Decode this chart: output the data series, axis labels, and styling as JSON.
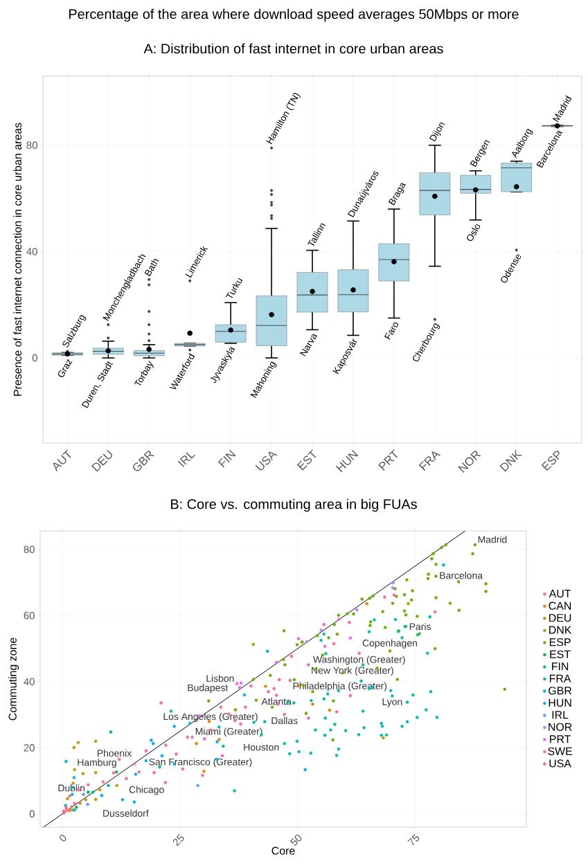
{
  "chart_data": [
    {
      "type": "box",
      "title": "Percentage of the area where download speed averages 50Mbps or more",
      "subtitle": "A: Distribution of fast internet in core urban areas",
      "ylabel": "Presence of fast internet connection in core urban areas",
      "categories": [
        "AUT",
        "DEU",
        "GBR",
        "IRL",
        "FIN",
        "USA",
        "EST",
        "HUN",
        "PRT",
        "FRA",
        "NOR",
        "DNK",
        "ESP"
      ],
      "color": "#add8e6",
      "grid": true,
      "ylim": [
        -32,
        106
      ],
      "yticks": [
        0,
        40,
        80
      ],
      "boxes": [
        {
          "low": 1,
          "q1": 1,
          "median": 1.5,
          "q3": 2,
          "high": 2,
          "mean": 1.5,
          "outliers": [
            2.5
          ]
        },
        {
          "low": 0,
          "q1": 1.3,
          "median": 2.5,
          "q3": 3.7,
          "high": 6.3,
          "mean": 2.7,
          "outliers": [
            7.5,
            12.5
          ]
        },
        {
          "low": 0,
          "q1": 0.8,
          "median": 1.8,
          "q3": 2.8,
          "high": 5,
          "mean": 3.2,
          "outliers": [
            6.5,
            9,
            12.5,
            17.5,
            27.5,
            29.5
          ]
        },
        {
          "low": 4.5,
          "q1": 4.5,
          "median": 5,
          "q3": 5.5,
          "high": 5.5,
          "mean": 9.3,
          "outliers": [
            3,
            29
          ]
        },
        {
          "low": 5.5,
          "q1": 5.9,
          "median": 10,
          "q3": 12.5,
          "high": 20.8,
          "mean": 10.5
        },
        {
          "low": 0,
          "q1": 4.6,
          "median": 12.2,
          "q3": 23.4,
          "high": 48.7,
          "mean": 16.3,
          "outliers": [
            52.5,
            53.5,
            57.5,
            58.5,
            61.5,
            63,
            79
          ]
        },
        {
          "low": 10.6,
          "q1": 17.2,
          "median": 23.7,
          "q3": 32.2,
          "high": 40.5,
          "mean": 25
        },
        {
          "low": 8.5,
          "q1": 17.3,
          "median": 23.8,
          "q3": 33.2,
          "high": 51.5,
          "mean": 25.6
        },
        {
          "low": 15,
          "q1": 28.9,
          "median": 37,
          "q3": 43,
          "high": 56,
          "mean": 36.2
        },
        {
          "low": 34.5,
          "q1": 53.8,
          "median": 63,
          "q3": 69.7,
          "high": 80,
          "mean": 60.8,
          "outliers": [
            14.5
          ]
        },
        {
          "low": 51.9,
          "q1": 61.9,
          "median": 63.4,
          "q3": 68.7,
          "high": 70.4,
          "mean": 63.2
        },
        {
          "low": 62.5,
          "q1": 62.5,
          "median": 71.5,
          "q3": 73.3,
          "high": 74,
          "mean": 64.4,
          "outliers": [
            40.6
          ]
        },
        {
          "low": 87.1,
          "q1": 87.1,
          "median": 87.3,
          "q3": 87.5,
          "high": 87.5,
          "mean": 87.3
        }
      ],
      "annotations": [
        "Salzburg",
        "Graz",
        "Monchengladbach",
        "Duren, Stadt",
        "Bath",
        "Torbay",
        "Limerick",
        "Waterford",
        "Turku",
        "Jyvaskyla",
        "Hamilton (TN)",
        "Mahoning",
        "Tallinn",
        "Narva",
        "Dunaújváros",
        "Kaposvár",
        "Braga",
        "Faro",
        "Dijon",
        "Cherbourg",
        "Bergen",
        "Oslo",
        "Aalborg",
        "Odense",
        "Madrid",
        "Barcelona"
      ]
    },
    {
      "type": "scatter",
      "title": "B: Core vs. commuting area in big FUAs",
      "xlabel": "Core",
      "ylabel": "Commuting zone",
      "xlim": [
        -4.7,
        98.6
      ],
      "ylim": [
        -4,
        85.6
      ],
      "xticks": [
        0,
        25,
        50,
        75
      ],
      "yticks": [
        0,
        20,
        40,
        60,
        80
      ],
      "grid": true,
      "legend": "right",
      "series": [
        {
          "name": "AUT",
          "color": "#F8766D",
          "x": [
            0.3,
            0.5,
            1.0,
            1.5,
            2.0
          ],
          "values": [
            0.3,
            0.6,
            1.2,
            1.0,
            2.2
          ]
        },
        {
          "name": "CAN",
          "color": "#E58700",
          "x": [
            31.2,
            28.5,
            30.1,
            33.3,
            43.2,
            50.1,
            64.7,
            56.8,
            53.2,
            68.2
          ],
          "values": [
            28.0,
            21.3,
            12.9,
            22.5,
            38.6,
            38.7,
            63.6,
            31.4,
            33.2,
            23.0
          ]
        },
        {
          "name": "DEU",
          "color": "#C99800",
          "x": [
            2.6,
            2.5,
            3.4,
            7.1,
            2.3,
            4.4,
            7.1,
            8.0,
            11.6,
            1.1,
            5.0,
            3.8,
            2.1,
            7.1
          ],
          "values": [
            13.4,
            20.1,
            21.6,
            22.0,
            9.3,
            12.2,
            12.5,
            7.3,
            8.6,
            4.6,
            4.3,
            3.2,
            1.2,
            4.4
          ]
        },
        {
          "name": "DNK",
          "color": "#A3A500",
          "x": [
            69.6,
            73.2,
            73.5,
            40.6
          ],
          "values": [
            49.3,
            70.8,
            63.6,
            51.3
          ]
        },
        {
          "name": "ESP",
          "color": "#6BB100",
          "x": [
            47.1,
            49.9,
            50.9,
            47.0,
            47.3,
            44.2,
            40.6,
            41.2,
            44.6,
            36.8,
            31.1,
            49.3,
            51.2,
            51.0,
            54.2,
            56.6,
            58.4,
            57.8,
            58.7,
            60.6,
            61.9,
            63.7,
            65.3,
            66.0,
            68.1,
            68.6,
            65.5,
            65.4,
            70.2,
            70.7,
            71.0,
            72.7,
            72.7,
            73.0,
            74.2,
            74.4,
            75.4,
            75.9,
            71.5,
            72.8,
            77.7,
            77.8,
            79.4,
            79.4,
            79.2,
            78.5,
            79.4,
            78.8,
            80.6,
            81.5,
            87.2,
            87.7,
            84.2,
            82.4,
            84.3,
            90.0,
            90.0,
            94.0,
            71.2,
            66.9,
            59.6,
            53.9,
            53.2,
            57.6,
            51.8,
            57.5,
            55.3
          ],
          "values": [
            55.4,
            51.2,
            52.0,
            46.7,
            45.1,
            41.9,
            40.7,
            34.4,
            32.3,
            31.5,
            34.2,
            40.6,
            38.9,
            52.0,
            53.9,
            53.3,
            54.4,
            57.3,
            60.1,
            60.6,
            60.5,
            65.0,
            65.2,
            65.9,
            61.2,
            56.4,
            58.1,
            57.0,
            63.7,
            68.1,
            65.8,
            66.3,
            61.4,
            60.2,
            64.7,
            67.5,
            59.8,
            54.5,
            55.4,
            56.7,
            71.2,
            72.5,
            71.9,
            65.4,
            50.0,
            77.2,
            75.5,
            78.7,
            80.6,
            81.4,
            78.7,
            81.4,
            70.2,
            63.7,
            61.6,
            69.6,
            67.3,
            37.7,
            40.7,
            44.1,
            42.7,
            43.9,
            37.0,
            34.2,
            30.4,
            22.4,
            48.0
          ]
        },
        {
          "name": "EST",
          "color": "#00BA38",
          "x": [
            11.5,
            5.5,
            3.0
          ],
          "values": [
            12.7,
            6.6,
            2.0
          ]
        },
        {
          "name": "FIN",
          "color": "#00BF7D",
          "x": [
            20.7,
            9.8,
            6.5,
            10.3
          ],
          "values": [
            14.2,
            8.6,
            6.6,
            24.8
          ]
        },
        {
          "name": "FRA",
          "color": "#00C0AF",
          "x": [
            23.1,
            36.6,
            34.2,
            40.7,
            42.3,
            43.0,
            43.6,
            47.2,
            48.3,
            49.9,
            50.3,
            47.9,
            49.2,
            52.8,
            53.8,
            55.8,
            57.0,
            57.9,
            58.7,
            58.3,
            60.2,
            63.0,
            64.1,
            63.9,
            55.9,
            55.6,
            56.4,
            58.7,
            52.9,
            63.5,
            65.2,
            65.9,
            63.9,
            65.2,
            66.3,
            70.8,
            71.4,
            72.2,
            75.5,
            78.1,
            77.6,
            78.3,
            79.6,
            75.4,
            77.3,
            74.5,
            73.3,
            73.3,
            72.2,
            69.8,
            67.8,
            68.0,
            67.8,
            68.9,
            55.0,
            55.6,
            56.0,
            81.0,
            73.0,
            70.1
          ],
          "values": [
            31.1,
            7.0,
            20.5,
            27.7,
            24.0,
            27.9,
            49.2,
            21.3,
            18.2,
            22.0,
            18.8,
            33.8,
            33.6,
            18.4,
            25.4,
            23.8,
            25.4,
            27.1,
            19.6,
            17.7,
            25.2,
            24.0,
            26.1,
            31.1,
            29.0,
            34.8,
            36.3,
            37.3,
            34.3,
            40.2,
            37.9,
            38.4,
            45.1,
            55.1,
            58.7,
            58.8,
            55.2,
            53.3,
            54.2,
            59.6,
            48.6,
            37.0,
            29.2,
            29.2,
            31.5,
            36.0,
            33.8,
            27.9,
            26.5,
            37.3,
            27.4,
            26.5,
            23.8,
            23.9,
            52.5,
            54.4,
            48.5,
            75.3,
            56.7,
            35.7
          ]
        },
        {
          "name": "GBR",
          "color": "#00BCD8",
          "x": [
            0.8,
            2.5,
            2.2,
            15.3,
            27.1,
            0.7,
            2.1
          ],
          "values": [
            15.9,
            11.0,
            8.0,
            3.6,
            27.4,
            2.6,
            5.9
          ]
        },
        {
          "name": "HUN",
          "color": "#00B0F6",
          "x": [
            38.7,
            23.8,
            18.9,
            19.3,
            17.8,
            21.2,
            23.8,
            32.9,
            32.9,
            33.3,
            15.6,
            12.8,
            8.4,
            2.6,
            51.6
          ],
          "values": [
            36.0,
            26.5,
            22.3,
            21.3,
            16.1,
            17.6,
            15.1,
            21.8,
            16.5,
            26.3,
            12.0,
            4.3,
            5.6,
            1.2,
            13.4
          ]
        },
        {
          "name": "IRL",
          "color": "#619CFF",
          "x": [
            5.4,
            4.5,
            28.8
          ],
          "values": [
            2.9,
            5.9,
            8.6
          ]
        },
        {
          "name": "NOR",
          "color": "#B983FF",
          "x": [
            70.2,
            70.3,
            62.6,
            51.9,
            55.0
          ],
          "values": [
            68.4,
            69.9,
            61.7,
            52.1,
            55.6
          ]
        },
        {
          "name": "PRT",
          "color": "#E76BF3",
          "x": [
            37.1,
            38.0,
            37.7,
            55.8,
            61.2,
            27.6,
            29.1
          ],
          "values": [
            39.4,
            39.6,
            38.2,
            50.7,
            53.2,
            23.2,
            29.6
          ]
        },
        {
          "name": "SWE",
          "color": "#FD61D1",
          "x": [
            45.5,
            58.8,
            70.5,
            50.2
          ],
          "values": [
            45.8,
            58.9,
            66.2,
            53.0
          ]
        },
        {
          "name": "USA",
          "color": "#FF67A4",
          "x": [
            21.0,
            40.1,
            45.0,
            46.1,
            48.7,
            45.8,
            47.2,
            38.9,
            33.7,
            35.4,
            31.5,
            30.2,
            26.6,
            22.0,
            24.2,
            34.0,
            25.6,
            29.8,
            21.9,
            19.5,
            17.8,
            15.3,
            13.6,
            12.1,
            10.9,
            8.7,
            5.5,
            3.5,
            1.6,
            0.8,
            0.3,
            2.6,
            16.3,
            36.7,
            37.9,
            43.8,
            45.5,
            48.4,
            52.3,
            61.2,
            58.3,
            52.3,
            63.1,
            57.7,
            79.2,
            61.0,
            55.6,
            68.5
          ],
          "values": [
            33.6,
            38.7,
            37.9,
            40.6,
            47.7,
            33.2,
            30.1,
            32.3,
            32.3,
            30.2,
            25.4,
            22.7,
            23.2,
            20.8,
            18.1,
            17.6,
            13.6,
            11.7,
            9.5,
            12.5,
            19.1,
            15.1,
            10.7,
            16.5,
            12.4,
            9.7,
            8.8,
            7.3,
            5.4,
            1.9,
            0.9,
            3.2,
            12.7,
            28.2,
            27.2,
            37.0,
            35.9,
            40.4,
            45.1,
            35.8,
            30.9,
            29.0,
            48.6,
            51.5,
            61.1,
            57.9,
            57.3,
            65.6
          ]
        },
        {
          "type": "line",
          "color": "#000000",
          "x": [
            -4,
            85.6
          ],
          "values": [
            -4,
            85.6
          ]
        }
      ],
      "annotations": [
        {
          "text": "Madrid",
          "x": 87.7,
          "y": 81.4
        },
        {
          "text": "Barcelona",
          "x": 79.4,
          "y": 75.5
        },
        {
          "text": "Paris",
          "x": 73.0,
          "y": 56.7
        },
        {
          "text": "Copenhagen",
          "x": 69.6,
          "y": 49.3
        },
        {
          "text": "Washington (Greater)",
          "x": 63.1,
          "y": 48.6
        },
        {
          "text": "New York (Greater)",
          "x": 52.3,
          "y": 45.1
        },
        {
          "text": "Lyon",
          "x": 70.1,
          "y": 35.7
        },
        {
          "text": "Philadelphia (Greater)",
          "x": 48.4,
          "y": 40.4
        },
        {
          "text": "Atlanta",
          "x": 45.5,
          "y": 35.9
        },
        {
          "text": "Dallas",
          "x": 47.2,
          "y": 30.1
        },
        {
          "text": "Lisbon",
          "x": 37.1,
          "y": 39.4
        },
        {
          "text": "Budapest",
          "x": 38.7,
          "y": 36.0
        },
        {
          "text": "Miami (Greater)",
          "x": 35.4,
          "y": 30.2
        },
        {
          "text": "Houston",
          "x": 37.9,
          "y": 27.2
        },
        {
          "text": "Los Angeles (Greater)",
          "x": 31.5,
          "y": 25.4
        },
        {
          "text": "San Francisco (Greater)",
          "x": 17.8,
          "y": 19.1
        },
        {
          "text": "Hamburg",
          "x": 2.6,
          "y": 13.4
        },
        {
          "text": "Phoenix",
          "x": 15.3,
          "y": 15.1
        },
        {
          "text": "Chicago",
          "x": 13.6,
          "y": 10.7
        },
        {
          "text": "Dusseldorf",
          "x": 8.0,
          "y": 7.3
        },
        {
          "text": "Dublin",
          "x": 5.4,
          "y": 2.9
        }
      ]
    }
  ]
}
